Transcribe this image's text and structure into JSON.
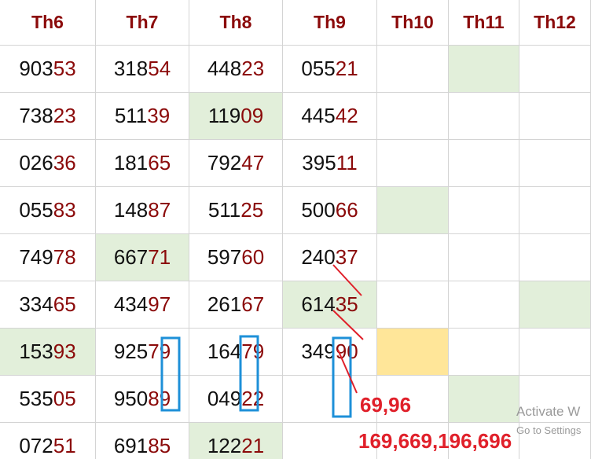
{
  "table": {
    "headers": [
      "Th6",
      "Th7",
      "Th8",
      "Th9",
      "Th10",
      "Th11",
      "Th12"
    ],
    "rows": [
      [
        "90353",
        "31854",
        "44823",
        "05521",
        null,
        null,
        null
      ],
      [
        "73823",
        "51139",
        "11909",
        "44542",
        null,
        null,
        null
      ],
      [
        "02636",
        "18165",
        "79247",
        "39511",
        null,
        null,
        null
      ],
      [
        "05583",
        "14887",
        "51125",
        "50066",
        null,
        null,
        null
      ],
      [
        "74978",
        "66771",
        "59760",
        "24037",
        null,
        null,
        null
      ],
      [
        "33465",
        "43497",
        "26167",
        "61435",
        null,
        null,
        null
      ],
      [
        "15393",
        "92579",
        "16479",
        "34990",
        null,
        null,
        null
      ],
      [
        "53505",
        "95089",
        "04922",
        null,
        null,
        null,
        null
      ],
      [
        "07251",
        "69185",
        "12221",
        null,
        null,
        null,
        null
      ]
    ]
  },
  "annotations": [
    "69,96",
    "169,669,196,696"
  ],
  "watermark": {
    "title": "Activate W",
    "subtitle": "Go to Settings"
  }
}
